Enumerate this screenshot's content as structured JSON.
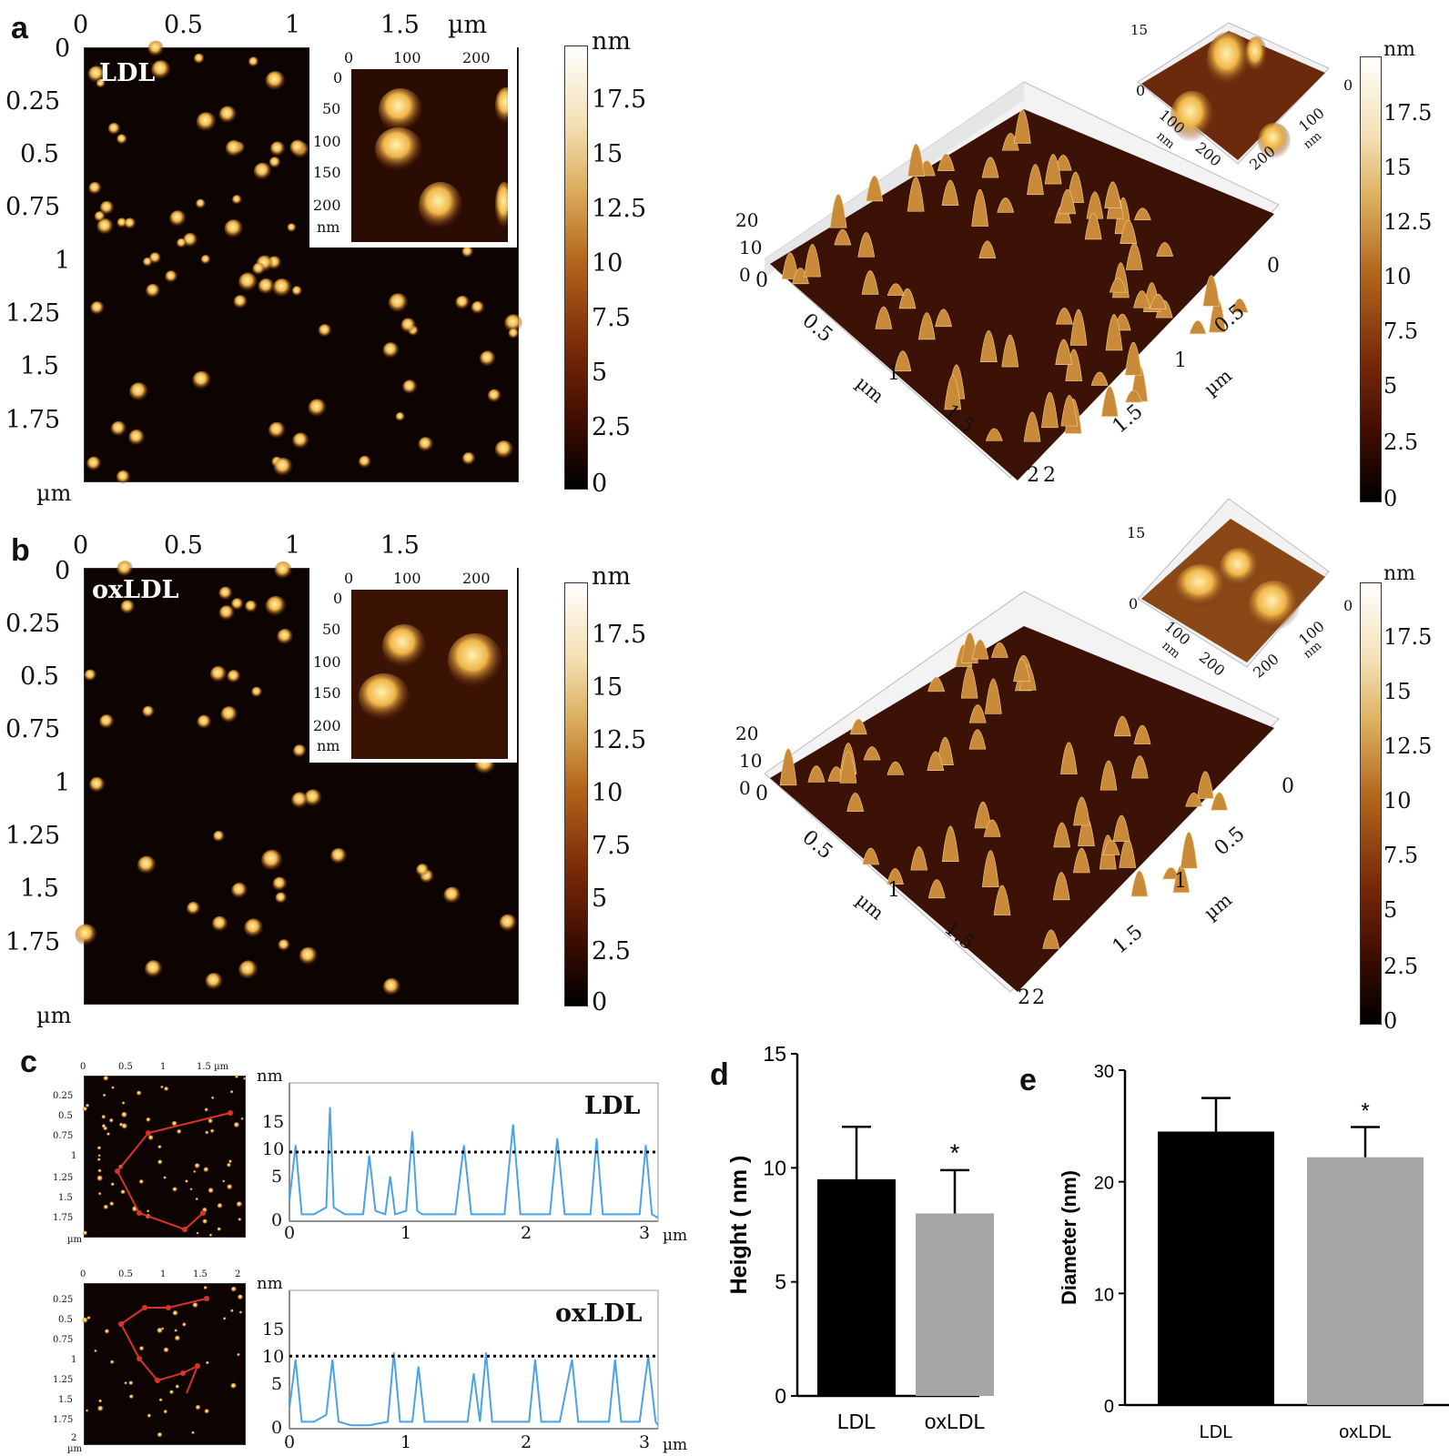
{
  "panels": {
    "a": {
      "letter": "a",
      "sample": "LDL",
      "x_ticks": [
        "0",
        "0.5",
        "1",
        "1.5"
      ],
      "x_unit": "µm",
      "y_ticks": [
        "0",
        "0.25",
        "0.5",
        "0.75",
        "1",
        "1.25",
        "1.5",
        "1.75"
      ],
      "y_unit": "µm",
      "inset_x_ticks": [
        "0",
        "100",
        "200"
      ],
      "inset_y_ticks": [
        "0",
        "50",
        "100",
        "150",
        "200"
      ],
      "inset_unit": "nm",
      "colorbar_unit": "nm",
      "colorbar_ticks": [
        "17.5",
        "15",
        "12.5",
        "10",
        "7.5",
        "5",
        "2.5",
        "0"
      ],
      "surf_z_ticks": [
        "20",
        "10",
        "0"
      ],
      "surf_x_ticks": [
        "0",
        "0.5",
        "1",
        "1.5",
        "2"
      ],
      "surf_y_ticks": [
        "0",
        "0.5",
        "1",
        "1.5",
        "2"
      ],
      "surf_unit": "µm",
      "surf_inset_z": "15",
      "surf_inset_ticks": [
        "0",
        "100",
        "200"
      ],
      "surf_inset_unit": "nm"
    },
    "b": {
      "letter": "b",
      "sample": "oxLDL",
      "x_ticks": [
        "0",
        "0.5",
        "1",
        "1.5"
      ],
      "y_ticks": [
        "0",
        "0.25",
        "0.5",
        "0.75",
        "1",
        "1.25",
        "1.5",
        "1.75"
      ],
      "y_unit": "µm",
      "inset_x_ticks": [
        "0",
        "100",
        "200"
      ],
      "inset_y_ticks": [
        "0",
        "50",
        "100",
        "150",
        "200"
      ],
      "inset_unit": "nm",
      "colorbar_unit": "nm",
      "colorbar_ticks": [
        "17.5",
        "15",
        "12.5",
        "10",
        "7.5",
        "5",
        "2.5",
        "0"
      ],
      "surf_z_ticks": [
        "20",
        "10",
        "0"
      ],
      "surf_x_ticks": [
        "0",
        "0.5",
        "1",
        "1.5",
        "2"
      ],
      "surf_y_ticks": [
        "0",
        "0.5",
        "1",
        "1.5",
        "2"
      ],
      "surf_unit": "µm",
      "surf_inset_z": "15",
      "surf_inset_ticks": [
        "0",
        "100",
        "200"
      ],
      "surf_inset_unit": "nm"
    },
    "c": {
      "letter": "c",
      "profile_y_unit": "nm",
      "profile_x_unit": "µm",
      "profile_y_ticks": [
        "15",
        "10",
        "5",
        "0"
      ],
      "profile_x_ticks": [
        "0",
        "1",
        "2",
        "3"
      ],
      "thumb_top_x_ticks": [
        "0",
        "0.5",
        "1",
        "1.5 µm"
      ],
      "thumb_bottom_x_ticks": [
        "0",
        "0.5",
        "1",
        "1.5",
        "2"
      ],
      "thumb_y_ticks": [
        "0.25",
        "0.5",
        "0.75",
        "1",
        "1.25",
        "1.5",
        "1.75"
      ],
      "thumb_bottom_y_last": "2",
      "thumb_unit": "µm",
      "top_label": "LDL",
      "bottom_label": "oxLDL"
    },
    "d": {
      "letter": "d"
    },
    "e": {
      "letter": "e"
    }
  },
  "colors": {
    "map_dark": "#0d0301",
    "particle": "#f0b548",
    "profile_line": "#4aa3e8",
    "path_red": "#d8322a",
    "bar_ldl": "#000000",
    "bar_oxldl": "#a6a6a6"
  },
  "chart_data": [
    {
      "type": "bar",
      "panel": "d",
      "categories": [
        "LDL",
        "oxLDL"
      ],
      "values": [
        9.5,
        8.0
      ],
      "errors": [
        2.3,
        1.9
      ],
      "significance": [
        "",
        "*"
      ],
      "ylabel": "Height ( nm )",
      "ylim": [
        0,
        15
      ],
      "yticks": [
        "0",
        "5",
        "10",
        "15"
      ]
    },
    {
      "type": "bar",
      "panel": "e",
      "categories": [
        "LDL",
        "oxLDL"
      ],
      "values": [
        24.5,
        22.2
      ],
      "errors": [
        3.0,
        2.7
      ],
      "significance": [
        "",
        "*"
      ],
      "ylabel": "Diameter (nm)",
      "ylim": [
        0,
        30
      ],
      "yticks": [
        "0",
        "10",
        "20",
        "30"
      ]
    },
    {
      "type": "line",
      "panel": "c-top",
      "x": [
        0,
        0.05,
        0.1,
        0.2,
        0.3,
        0.33,
        0.36,
        0.45,
        0.6,
        0.65,
        0.7,
        0.78,
        0.82,
        0.86,
        0.95,
        1.0,
        1.04,
        1.08,
        1.2,
        1.35,
        1.42,
        1.48,
        1.6,
        1.75,
        1.82,
        1.88,
        2.0,
        2.12,
        2.18,
        2.24,
        2.35,
        2.45,
        2.5,
        2.55,
        2.7,
        2.85,
        2.9,
        2.95,
        3.0
      ],
      "y": [
        3,
        11,
        1,
        1,
        2,
        16.5,
        2,
        1,
        1,
        9.5,
        1.5,
        1,
        6.5,
        1,
        1.5,
        13,
        1.5,
        1,
        1,
        1,
        11,
        1,
        1,
        1,
        14,
        1,
        1,
        1,
        12,
        1,
        1,
        1,
        12,
        1,
        1,
        1,
        11,
        1,
        0.5
      ],
      "reference_line": 10,
      "xlim": [
        0,
        3
      ],
      "ylim": [
        0,
        20
      ]
    },
    {
      "type": "line",
      "panel": "c-bottom",
      "x": [
        0,
        0.05,
        0.1,
        0.2,
        0.3,
        0.35,
        0.4,
        0.5,
        0.65,
        0.8,
        0.85,
        0.9,
        1.0,
        1.05,
        1.1,
        1.2,
        1.35,
        1.45,
        1.5,
        1.55,
        1.6,
        1.65,
        1.7,
        1.8,
        1.95,
        2.0,
        2.05,
        2.2,
        2.3,
        2.35,
        2.5,
        2.6,
        2.65,
        2.7,
        2.85,
        2.92,
        2.98,
        3.0
      ],
      "y": [
        3,
        10,
        1,
        1,
        2,
        10,
        1,
        0.5,
        0.5,
        1,
        11,
        1,
        1,
        9,
        1,
        1,
        1,
        1,
        8,
        1,
        11,
        1,
        1,
        1,
        1,
        10,
        1,
        1,
        10,
        1,
        1,
        1,
        10,
        1,
        1,
        10.5,
        1,
        0.5
      ],
      "reference_line": 10.5,
      "xlim": [
        0,
        3
      ],
      "ylim": [
        0,
        20
      ]
    }
  ]
}
